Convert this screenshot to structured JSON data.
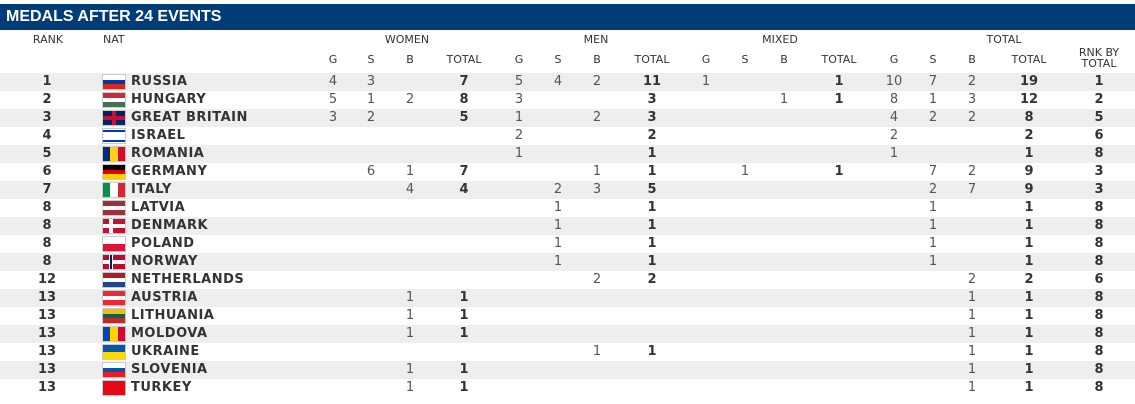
{
  "title": "MEDALS AFTER 24 EVENTS",
  "columns": {
    "rank": "RANK",
    "nat": "NAT",
    "groups": [
      "WOMEN",
      "MEN",
      "MIXED",
      "TOTAL"
    ],
    "sub": [
      "G",
      "S",
      "B",
      "TOTAL"
    ],
    "rank_by_total": "RNK BY TOTAL"
  },
  "rows": [
    [
      1,
      "RUSSIA",
      4,
      3,
      null,
      7,
      5,
      4,
      2,
      11,
      1,
      null,
      null,
      1,
      10,
      7,
      2,
      19,
      1
    ],
    [
      2,
      "HUNGARY",
      5,
      1,
      2,
      8,
      3,
      null,
      null,
      3,
      null,
      null,
      1,
      1,
      8,
      1,
      3,
      12,
      2
    ],
    [
      3,
      "GREAT BRITAIN",
      3,
      2,
      null,
      5,
      1,
      null,
      2,
      3,
      null,
      null,
      null,
      null,
      4,
      2,
      2,
      8,
      5
    ],
    [
      4,
      "ISRAEL",
      null,
      null,
      null,
      null,
      2,
      null,
      null,
      2,
      null,
      null,
      null,
      null,
      2,
      null,
      null,
      2,
      6
    ],
    [
      5,
      "ROMANIA",
      null,
      null,
      null,
      null,
      1,
      null,
      null,
      1,
      null,
      null,
      null,
      null,
      1,
      null,
      null,
      1,
      8
    ],
    [
      6,
      "GERMANY",
      null,
      6,
      1,
      7,
      null,
      null,
      1,
      1,
      null,
      1,
      null,
      1,
      null,
      7,
      2,
      9,
      3
    ],
    [
      7,
      "ITALY",
      null,
      null,
      4,
      4,
      null,
      2,
      3,
      5,
      null,
      null,
      null,
      null,
      null,
      2,
      7,
      9,
      3
    ],
    [
      8,
      "LATVIA",
      null,
      null,
      null,
      null,
      null,
      1,
      null,
      1,
      null,
      null,
      null,
      null,
      null,
      1,
      null,
      1,
      8
    ],
    [
      8,
      "DENMARK",
      null,
      null,
      null,
      null,
      null,
      1,
      null,
      1,
      null,
      null,
      null,
      null,
      null,
      1,
      null,
      1,
      8
    ],
    [
      8,
      "POLAND",
      null,
      null,
      null,
      null,
      null,
      1,
      null,
      1,
      null,
      null,
      null,
      null,
      null,
      1,
      null,
      1,
      8
    ],
    [
      8,
      "NORWAY",
      null,
      null,
      null,
      null,
      null,
      1,
      null,
      1,
      null,
      null,
      null,
      null,
      null,
      1,
      null,
      1,
      8
    ],
    [
      12,
      "NETHERLANDS",
      null,
      null,
      null,
      null,
      null,
      null,
      2,
      2,
      null,
      null,
      null,
      null,
      null,
      null,
      2,
      2,
      6
    ],
    [
      13,
      "AUSTRIA",
      null,
      null,
      1,
      1,
      null,
      null,
      null,
      null,
      null,
      null,
      null,
      null,
      null,
      null,
      1,
      1,
      8
    ],
    [
      13,
      "LITHUANIA",
      null,
      null,
      1,
      1,
      null,
      null,
      null,
      null,
      null,
      null,
      null,
      null,
      null,
      null,
      1,
      1,
      8
    ],
    [
      13,
      "MOLDOVA",
      null,
      null,
      1,
      1,
      null,
      null,
      null,
      null,
      null,
      null,
      null,
      null,
      null,
      null,
      1,
      1,
      8
    ],
    [
      13,
      "UKRAINE",
      null,
      null,
      null,
      null,
      null,
      null,
      1,
      1,
      null,
      null,
      null,
      null,
      null,
      null,
      1,
      1,
      8
    ],
    [
      13,
      "SLOVENIA",
      null,
      null,
      1,
      1,
      null,
      null,
      null,
      null,
      null,
      null,
      null,
      null,
      null,
      null,
      1,
      1,
      8
    ],
    [
      13,
      "TURKEY",
      null,
      null,
      1,
      1,
      null,
      null,
      null,
      null,
      null,
      null,
      null,
      null,
      null,
      null,
      1,
      1,
      8
    ]
  ]
}
